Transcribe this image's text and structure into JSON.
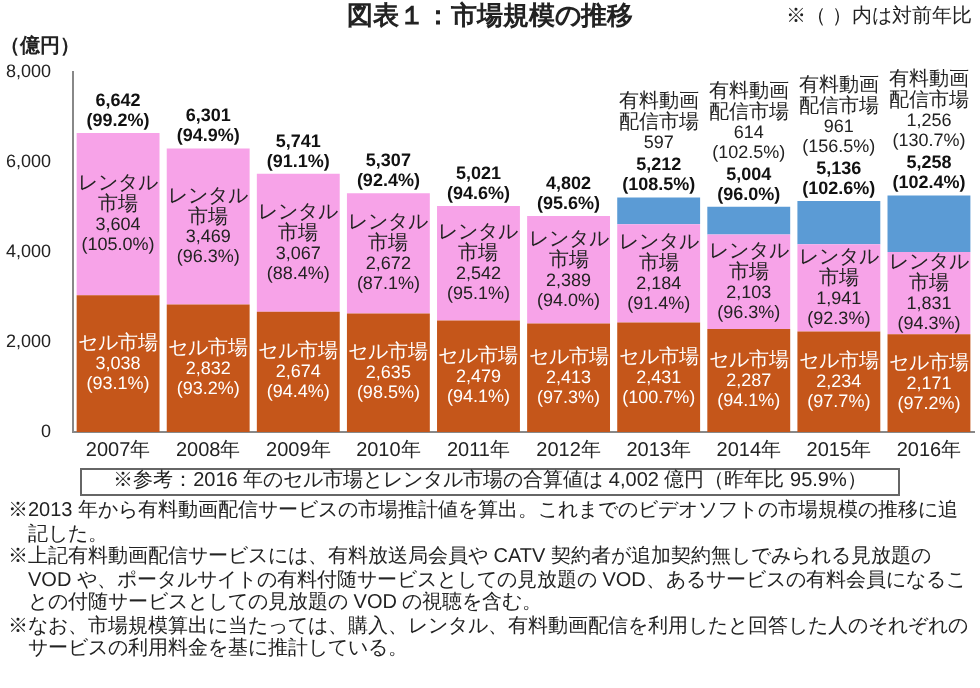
{
  "chart_data": {
    "type": "bar",
    "stacked": true,
    "title": "図表１：市場規模の推移",
    "ylabel": "（億円）",
    "categories": [
      "2007年",
      "2008年",
      "2009年",
      "2010年",
      "2011年",
      "2012年",
      "2013年",
      "2014年",
      "2015年",
      "2016年"
    ],
    "series": [
      {
        "color": "#c5561a",
        "values": [
          3038,
          2832,
          2674,
          2635,
          2479,
          2413,
          2431,
          2287,
          2234,
          2171
        ],
        "value_labels": [
          "セル市場\n3,038\n(93.1%)",
          "セル市場\n2,832\n(93.2%)",
          "セル市場\n2,674\n(94.4%)",
          "セル市場\n2,635\n(98.5%)",
          "セル市場\n2,479\n(94.1%)",
          "セル市場\n2,413\n(97.3%)",
          "セル市場\n2,431\n(100.7%)",
          "セル市場\n2,287\n(94.1%)",
          "セル市場\n2,234\n(97.7%)",
          "セル市場\n2,171\n(97.2%)"
        ]
      },
      {
        "color": "#f7a3e8",
        "values": [
          3604,
          3469,
          3067,
          2672,
          2542,
          2389,
          2184,
          2103,
          1941,
          1831
        ],
        "value_labels": [
          "レンタル市場\n3,604\n(105.0%)",
          "レンタル市場\n3,469\n(96.3%)",
          "レンタル市場\n3,067\n(88.4%)",
          "レンタル市場\n2,672\n(87.1%)",
          "レンタル市場\n2,542\n(95.1%)",
          "レンタル市場\n2,389\n(94.0%)",
          "レンタル市場\n2,184\n(91.4%)",
          "レンタル市場\n2,103\n(96.3%)",
          "レンタル市場\n1,941\n(92.3%)",
          "レンタル市場\n1,831\n(94.3%)"
        ]
      },
      {
        "color": "#5b9bd5",
        "values": [
          null,
          null,
          null,
          null,
          null,
          null,
          597,
          614,
          961,
          1256
        ],
        "value_labels": [
          null,
          null,
          null,
          null,
          null,
          null,
          "有料動画配信市場\n597",
          "有料動画配信市場\n614\n(102.5%)",
          "有料動画配信市場\n961\n(156.5%)",
          "有料動画配信市場\n1,256\n(130.7%)"
        ]
      }
    ],
    "totals": [
      "6,642\n(99.2%)",
      "6,301\n(94.9%)",
      "5,741\n(91.1%)",
      "5,307\n(92.4%)",
      "5,021\n(94.6%)",
      "4,802\n(95.6%)",
      "5,212\n(108.5%)",
      "5,004\n(96.0%)",
      "5,136\n(102.6%)",
      "5,258\n(102.4%)"
    ],
    "ylim": [
      0,
      8000
    ],
    "yticks": [
      0,
      {
        "value": 2000,
        "label": "2,000"
      },
      {
        "value": 4000,
        "label": "4,000"
      },
      {
        "value": 6000,
        "label": "6,000"
      },
      {
        "value": 8000,
        "label": "8,000"
      }
    ],
    "grid": false,
    "legend": false,
    "annotations": [
      "※（ ）内は対前年比",
      "※参考：2016 年のセル市場とレンタル市場の合算値は 4,002 億円（昨年比 95.9%）",
      "※2013 年から有料動画配信サービスの市場推計値を算出。これまでのビデオソフトの市場規模の推移に追記した。",
      "※上記有料動画配信サービスには、有料放送局会員や CATV 契約者が追加契約無しでみられる見放題の VOD や、ポータルサイトの有料付随サービスとしての見放題の VOD、あるサービスの有料会員になることの付随サービスとしての見放題の VOD の視聴を含む。",
      "※なお、市場規模算出に当たっては、購入、レンタル、有料動画配信を利用したと回答した人のそれぞれのサービスの利用料金を基に推計している。"
    ]
  }
}
